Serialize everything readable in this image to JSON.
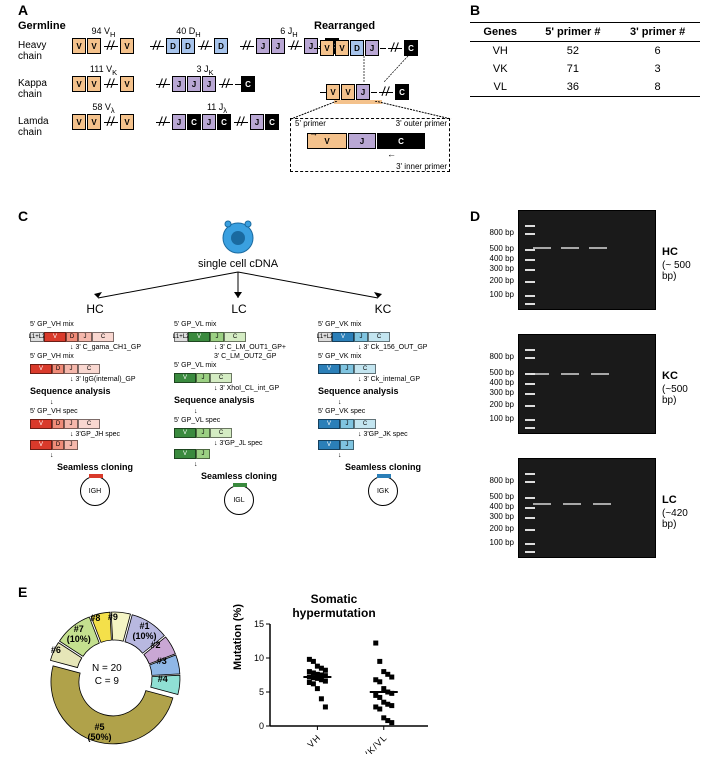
{
  "panelA": {
    "label": "A",
    "germline": "Germline",
    "rearranged": "Rearranged",
    "rows": [
      {
        "name": "Heavy\nchain",
        "counts": [
          "94 V",
          "40 D",
          "6 J"
        ],
        "sub": [
          "H",
          "H",
          "H"
        ]
      },
      {
        "name": "Kappa\nchain",
        "counts": [
          "111 V",
          "3 J"
        ],
        "sub": [
          "K",
          "K"
        ]
      },
      {
        "name": "Lamda\nchain",
        "counts": [
          "58 V",
          "11 J"
        ],
        "sub": [
          "λ",
          "λ"
        ]
      }
    ],
    "primer5": "5' primer",
    "primer3out": "3' outer primer",
    "primer3in": "3' inner primer",
    "colors": {
      "v": "#f4c28c",
      "d": "#a7c4ec",
      "j": "#b9a7d4",
      "c": "#000000"
    }
  },
  "panelB": {
    "label": "B",
    "headers": [
      "Genes",
      "5' primer #",
      "3' primer #"
    ],
    "rows": [
      [
        "VH",
        "52",
        "6"
      ],
      [
        "VK",
        "71",
        "3"
      ],
      [
        "VL",
        "36",
        "8"
      ]
    ]
  },
  "panelC": {
    "label": "C",
    "cdna": "single cell cDNA",
    "cols": [
      {
        "title": "HC",
        "colors": {
          "v": "#d93a2b",
          "d": "#f08b78",
          "j": "#f5b7ab",
          "c": "#f9d7d0"
        },
        "mix5": "5' GP_VH mix",
        "out3": "3' C_gama_CH1_GP",
        "int3": "3' IgG(internal)_GP",
        "spec5": "5' GP_VH spec",
        "spec3": "3'GP_JH spec",
        "plasmid": "IGH"
      },
      {
        "title": "LC",
        "colors": {
          "v": "#3a8a3e",
          "d": null,
          "j": "#9bd083",
          "c": "#d4ecc3"
        },
        "mix5": "5' GP_VL mix",
        "out3": "3' C_LM_OUT1_GP+\n3' C_LM_OUT2_GP",
        "int3": "3' XhoI_CL_int_GP",
        "spec5": "5' GP_VL spec",
        "spec3": "3'GP_JL spec",
        "plasmid": "IGL"
      },
      {
        "title": "KC",
        "colors": {
          "v": "#2b7fb8",
          "d": null,
          "j": "#7fc4e0",
          "c": "#c3e5f0"
        },
        "mix5": "5' GP_VK mix",
        "out3": "3' Ck_156_OUT_GP",
        "int3": "3' Ck_internal_GP",
        "spec5": "5' GP_VK spec",
        "spec3": "3'GP_JK spec",
        "plasmid": "IGK"
      }
    ],
    "seqanalysis": "Sequence analysis",
    "seamless": "Seamless cloning"
  },
  "panelD": {
    "label": "D",
    "ladder": [
      "800 bp",
      "500 bp",
      "400 bp",
      "300 bp",
      "200 bp",
      "100 bp"
    ],
    "ladder_y": [
      22,
      38,
      48,
      58,
      70,
      84
    ],
    "gels": [
      {
        "title": "HC",
        "size": "(~ 500 bp)",
        "band_y": 36,
        "lanes": [
          62,
          90,
          118
        ]
      },
      {
        "title": "KC",
        "size": "(~500 bp)",
        "band_y": 38,
        "lanes": [
          60,
          90,
          120
        ]
      },
      {
        "title": "LC",
        "size": "(~420 bp)",
        "band_y": 44,
        "lanes": [
          62,
          92,
          122
        ]
      }
    ]
  },
  "panelE": {
    "label": "E",
    "donut": {
      "N": "N = 20",
      "C": "C = 9",
      "slices": [
        {
          "id": "#1",
          "pct": "(10%)",
          "color": "#b8b8e0",
          "start": -75,
          "end": -39
        },
        {
          "id": "#2",
          "pct": "",
          "color": "#c9a7d4",
          "start": -39,
          "end": -21
        },
        {
          "id": "#3",
          "pct": "",
          "color": "#8fb7e6",
          "start": -21,
          "end": -3
        },
        {
          "id": "#4",
          "pct": "",
          "color": "#8fe0d4",
          "start": -3,
          "end": 15
        },
        {
          "id": "#5",
          "pct": "(50%)",
          "color": "#b0a24a",
          "start": 15,
          "end": 195
        },
        {
          "id": "#6",
          "pct": "",
          "color": "#e6e6b8",
          "start": 195,
          "end": 213
        },
        {
          "id": "#7",
          "pct": "(10%)",
          "color": "#c4e08f",
          "start": 213,
          "end": 249
        },
        {
          "id": "#8",
          "pct": "",
          "color": "#f4e04a",
          "start": 249,
          "end": 267
        },
        {
          "id": "#9",
          "pct": "",
          "color": "#f4f4c4",
          "start": 267,
          "end": 285
        }
      ]
    },
    "scatter": {
      "title": "Somatic\nhypermutation",
      "ylabel": "Mutation (%)",
      "ylim": [
        0,
        15
      ],
      "yticks": [
        0,
        5,
        10,
        15
      ],
      "categories": [
        "VH",
        "VK/VL"
      ],
      "means": [
        7.2,
        5.0
      ],
      "points": {
        "VH": [
          8.8,
          8.5,
          8.2,
          8.0,
          7.8,
          7.6,
          7.5,
          7.4,
          7.2,
          7.1,
          7.0,
          6.8,
          6.6,
          6.4,
          6.2,
          5.5,
          4.0,
          2.8,
          9.5,
          9.8
        ],
        "VKVL": [
          12.2,
          9.5,
          8.0,
          7.6,
          7.2,
          6.8,
          6.5,
          5.5,
          5.0,
          4.8,
          4.5,
          4.2,
          3.5,
          3.2,
          3.0,
          2.8,
          2.5,
          1.2,
          0.8,
          0.5
        ]
      }
    }
  }
}
